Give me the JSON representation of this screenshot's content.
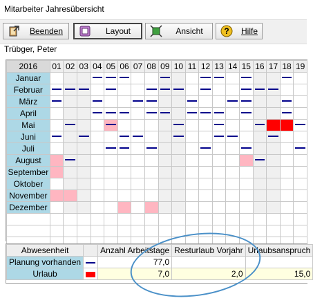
{
  "window": {
    "title": "Mitarbeiter Jahresübersicht"
  },
  "toolbar": {
    "beenden_label": "Beenden",
    "layout_label": "Layout",
    "ansicht_label": "Ansicht",
    "hilfe_label": "Hilfe"
  },
  "employee": {
    "name": "Trübger, Peter"
  },
  "calendar": {
    "year": "2016",
    "days": [
      "01",
      "02",
      "03",
      "04",
      "05",
      "06",
      "07",
      "08",
      "09",
      "10",
      "11",
      "12",
      "13",
      "14",
      "15",
      "16",
      "17",
      "18",
      "19"
    ],
    "months": [
      {
        "label": "Januar",
        "dash": [
          4,
          5,
          6,
          9,
          12,
          13,
          15,
          18
        ],
        "pink": [],
        "red": []
      },
      {
        "label": "Februar",
        "dash": [
          1,
          2,
          3,
          5,
          8,
          9,
          10,
          12,
          15,
          16,
          17
        ],
        "pink": [],
        "red": []
      },
      {
        "label": "März",
        "dash": [
          1,
          4,
          7,
          8,
          11,
          14,
          15,
          18
        ],
        "pink": [],
        "red": []
      },
      {
        "label": "April",
        "dash": [
          4,
          5,
          6,
          8,
          9,
          11,
          12,
          13,
          15,
          18
        ],
        "pink": [],
        "red": []
      },
      {
        "label": "Mai",
        "dash": [
          2,
          5,
          10,
          13,
          16,
          19
        ],
        "pink": [
          5
        ],
        "red": [
          17,
          18
        ]
      },
      {
        "label": "Juni",
        "dash": [
          1,
          3,
          6,
          7,
          10,
          13,
          14,
          17
        ],
        "pink": [],
        "red": []
      },
      {
        "label": "Juli",
        "dash": [
          5,
          6,
          8,
          12,
          15,
          19
        ],
        "pink": [],
        "red": []
      },
      {
        "label": "August",
        "dash": [
          2,
          16
        ],
        "pink": [
          1,
          15
        ],
        "red": []
      },
      {
        "label": "September",
        "dash": [],
        "pink": [
          1
        ],
        "red": []
      },
      {
        "label": "Oktober",
        "dash": [],
        "pink": [],
        "red": []
      },
      {
        "label": "November",
        "dash": [],
        "pink": [
          1,
          2
        ],
        "red": []
      },
      {
        "label": "Dezember",
        "dash": [],
        "pink": [
          6,
          8
        ],
        "red": []
      }
    ],
    "weekend_shading": [
      2,
      3,
      9,
      10,
      16,
      17
    ]
  },
  "summary": {
    "headers": [
      "Abwesenheit",
      "",
      "Anzahl Arbeitstage",
      "Resturlaub Vorjahr",
      "Urlaubsanspruch"
    ],
    "rows": [
      {
        "label": "Planung vorhanden",
        "arbeitstage": "77,0",
        "resturlaub": "",
        "anspruch": ""
      },
      {
        "label": "Urlaub",
        "arbeitstage": "7,0",
        "resturlaub": "2,0",
        "anspruch": "15,0"
      }
    ]
  }
}
